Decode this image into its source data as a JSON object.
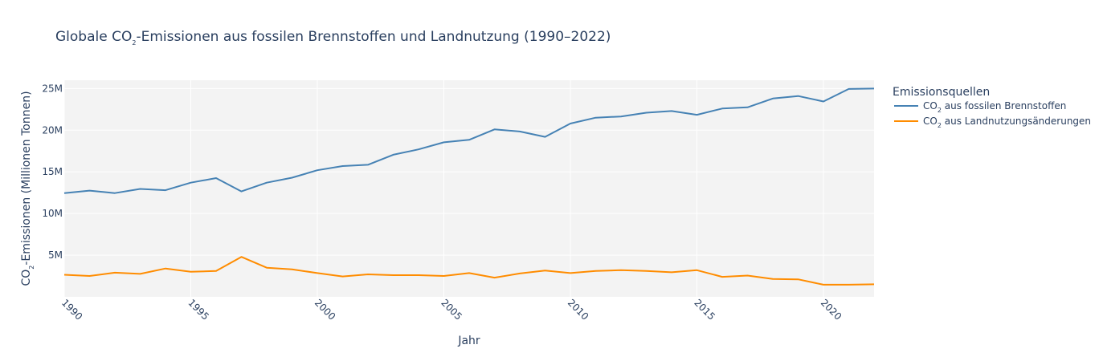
{
  "chart_data": {
    "type": "line",
    "title": {
      "prefix": "Globale CO",
      "sub": "2",
      "suffix": "-Emissionen aus fossilen Brennstoffen und Landnutzung (1990–2022)"
    },
    "xlabel": "Jahr",
    "ylabel": {
      "prefix": "CO",
      "sub": "2",
      "suffix": "-Emissionen (Millionen Tonnen)"
    },
    "x": [
      1990,
      1991,
      1992,
      1993,
      1994,
      1995,
      1996,
      1997,
      1998,
      1999,
      2000,
      2001,
      2002,
      2003,
      2004,
      2005,
      2006,
      2007,
      2008,
      2009,
      2010,
      2011,
      2012,
      2013,
      2014,
      2015,
      2016,
      2017,
      2018,
      2019,
      2020,
      2021,
      2022
    ],
    "xlim": [
      1990,
      2022
    ],
    "ylim": [
      0,
      26000000
    ],
    "x_ticks": [
      1990,
      1995,
      2000,
      2005,
      2010,
      2015,
      2020
    ],
    "y_ticks": [
      {
        "value": 5000000,
        "label": "5M"
      },
      {
        "value": 10000000,
        "label": "10M"
      },
      {
        "value": 15000000,
        "label": "15M"
      },
      {
        "value": 20000000,
        "label": "20M"
      },
      {
        "value": 25000000,
        "label": "25M"
      }
    ],
    "grid": true,
    "legend_title": "Emissionsquellen",
    "legend_position": "right",
    "series": [
      {
        "name": {
          "prefix": "CO",
          "sub": "2",
          "suffix": " aus fossilen Brennstoffen"
        },
        "color": "#4682b4",
        "values": [
          12450000,
          12750000,
          12450000,
          12950000,
          12800000,
          13700000,
          14250000,
          12650000,
          13700000,
          14300000,
          15200000,
          15700000,
          15850000,
          17050000,
          17700000,
          18550000,
          18850000,
          20100000,
          19850000,
          19200000,
          20800000,
          21500000,
          21650000,
          22100000,
          22300000,
          21850000,
          22600000,
          22750000,
          23800000,
          24100000,
          23450000,
          24950000,
          25000000
        ]
      },
      {
        "name": {
          "prefix": "CO",
          "sub": "2",
          "suffix": " aus Landnutzungsänderungen"
        },
        "color": "#ff8c00",
        "values": [
          2650000,
          2500000,
          2900000,
          2750000,
          3400000,
          3000000,
          3100000,
          4800000,
          3500000,
          3300000,
          2850000,
          2450000,
          2700000,
          2600000,
          2600000,
          2500000,
          2850000,
          2300000,
          2800000,
          3150000,
          2850000,
          3100000,
          3200000,
          3100000,
          2950000,
          3200000,
          2400000,
          2550000,
          2150000,
          2100000,
          1450000,
          1450000,
          1500000
        ]
      }
    ]
  }
}
